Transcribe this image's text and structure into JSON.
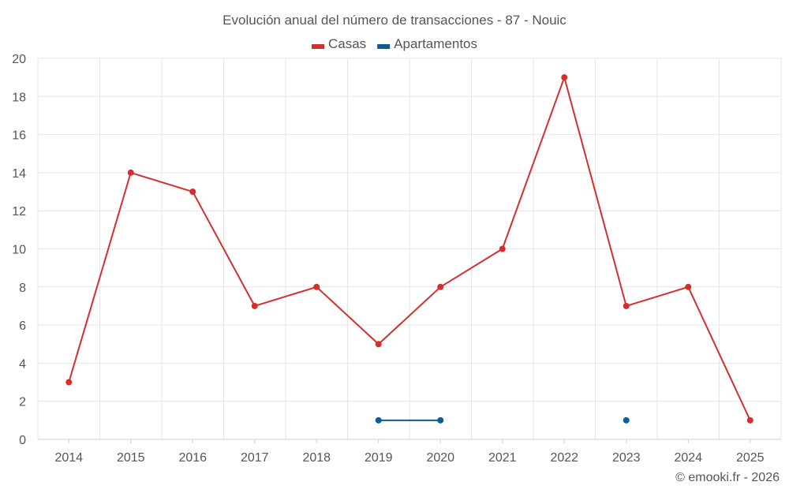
{
  "chart_data": {
    "type": "line",
    "title": "Evolución anual del número de transacciones - 87 - Nouic",
    "categories": [
      "2014",
      "2015",
      "2016",
      "2017",
      "2018",
      "2019",
      "2020",
      "2021",
      "2022",
      "2023",
      "2024",
      "2025"
    ],
    "series": [
      {
        "name": "Casas",
        "color": "#d32f2f",
        "values": [
          3,
          14,
          13,
          7,
          8,
          5,
          8,
          10,
          19,
          7,
          8,
          1
        ]
      },
      {
        "name": "Apartamentos",
        "color": "#0d5e95",
        "values": [
          null,
          null,
          null,
          null,
          null,
          1,
          1,
          null,
          null,
          1,
          null,
          null
        ]
      }
    ],
    "xlabel": "",
    "ylabel": "",
    "ylim": [
      0,
      20
    ],
    "yticks": [
      0,
      2,
      4,
      6,
      8,
      10,
      12,
      14,
      16,
      18,
      20
    ],
    "grid": true,
    "legend_position": "top-center"
  },
  "credit": "© emooki.fr - 2026"
}
